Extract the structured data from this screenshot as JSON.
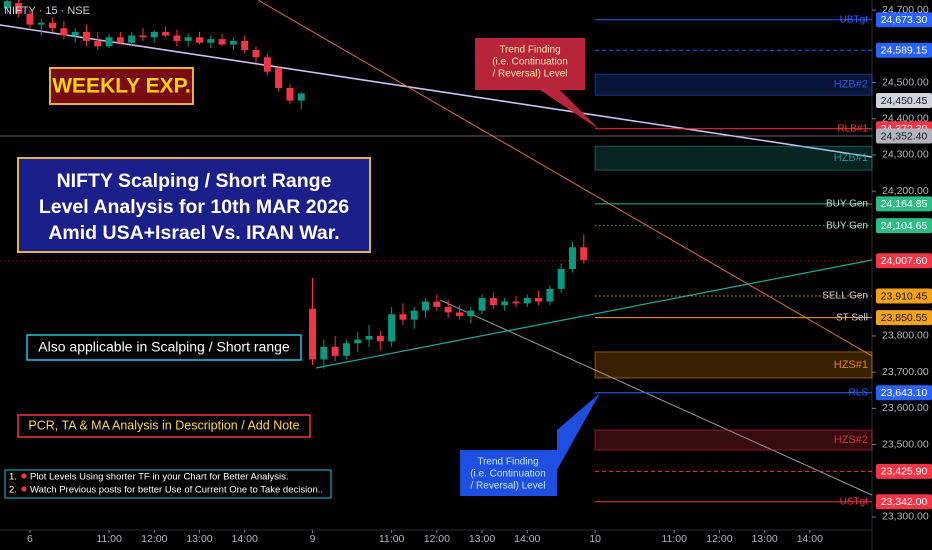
{
  "chart_data": {
    "type": "candlestick",
    "header": "NIFTY · 15 · NSE",
    "title_lines": [
      "NIFTY Scalping / Short Range",
      "Level Analysis for 10th MAR 2026",
      "Amid USA+Israel Vs. IRAN War."
    ],
    "badge": "WEEKLY EXP.",
    "note_scalping": "Also applicable in Scalping / Short range",
    "note_pcr": "PCR, TA & MA Analysis in Description / Add Note",
    "notes": [
      {
        "num": "1.",
        "text": "Plot Levels Using shorter TF in your Chart for Better Analysis."
      },
      {
        "num": "2.",
        "text": "Watch Previous posts for better Use of Current One to Take decision.."
      }
    ],
    "callouts": [
      {
        "lines": [
          "Trend Finding",
          "(i.e. Continuation",
          "/ Reversal) Level"
        ],
        "color": "#b8243a",
        "text_color": "#ffe7a8"
      },
      {
        "lines": [
          "Trend Finding",
          "(i.e. Continuation",
          "/ Reversal) Level"
        ],
        "color": "#1f4fe0",
        "text_color": "#bfe6ff"
      }
    ],
    "up_color": "#089981",
    "down_color": "#f23645",
    "x": [
      -2,
      -1,
      0,
      1,
      2,
      3,
      4,
      5,
      6,
      7,
      8,
      9,
      10,
      11,
      12,
      13,
      14,
      15,
      16,
      17,
      18,
      19,
      20,
      21,
      22,
      23,
      24,
      25,
      26,
      27,
      28,
      29,
      30,
      31,
      32,
      33,
      34,
      35,
      36,
      37,
      38,
      39,
      40,
      41,
      42,
      43,
      44,
      45,
      46,
      47,
      48,
      49
    ],
    "open": [
      24705,
      24720,
      24690,
      24660,
      24665,
      24650,
      24630,
      24640,
      24615,
      24600,
      24625,
      24610,
      24630,
      24625,
      24640,
      24630,
      24615,
      24625,
      24610,
      24620,
      24605,
      24615,
      24590,
      24570,
      24540,
      24485,
      24450,
      23875,
      23735,
      23770,
      23745,
      23780,
      23790,
      23800,
      23785,
      23860,
      23845,
      23870,
      23895,
      23880,
      23865,
      23855,
      23870,
      23905,
      23885,
      23895,
      23890,
      23905,
      23895,
      23930,
      23985,
      24045
    ],
    "high": [
      24730,
      24728,
      24700,
      24675,
      24680,
      24670,
      24650,
      24660,
      24640,
      24635,
      24640,
      24640,
      24650,
      24645,
      24655,
      24645,
      24635,
      24640,
      24630,
      24635,
      24625,
      24630,
      24600,
      24580,
      24545,
      24495,
      24475,
      23960,
      23790,
      23800,
      23790,
      23810,
      23830,
      23815,
      23880,
      23890,
      23880,
      23905,
      23915,
      23900,
      23885,
      23880,
      23915,
      23920,
      23905,
      23910,
      23915,
      23925,
      23940,
      24000,
      24060,
      24080
    ],
    "low": [
      24690,
      24680,
      24650,
      24630,
      24640,
      24620,
      24610,
      24600,
      24590,
      24595,
      24605,
      24600,
      24615,
      24610,
      24625,
      24600,
      24600,
      24605,
      24595,
      24600,
      24590,
      24580,
      24555,
      24520,
      24475,
      24440,
      24425,
      23720,
      23710,
      23730,
      23735,
      23755,
      23770,
      23760,
      23770,
      23830,
      23820,
      23850,
      23870,
      23850,
      23845,
      23835,
      23860,
      23875,
      23870,
      23880,
      23880,
      23885,
      23885,
      23920,
      23975,
      24000
    ],
    "close": [
      24725,
      24690,
      24660,
      24665,
      24650,
      24630,
      24640,
      24615,
      24600,
      24625,
      24610,
      24630,
      24625,
      24640,
      24630,
      24615,
      24625,
      24610,
      24620,
      24605,
      24615,
      24590,
      24570,
      24530,
      24485,
      24450,
      24470,
      23735,
      23770,
      23745,
      23780,
      23790,
      23800,
      23785,
      23860,
      23845,
      23870,
      23895,
      23880,
      23865,
      23855,
      23870,
      23905,
      23885,
      23895,
      23890,
      23905,
      23895,
      23930,
      23985,
      24045,
      24010
    ],
    "xlim": [
      -2.65,
      74.5
    ],
    "xticks": [
      {
        "value": 0,
        "label": "6"
      },
      {
        "value": 7,
        "label": "11:00"
      },
      {
        "value": 11,
        "label": "12:00"
      },
      {
        "value": 15,
        "label": "13:00"
      },
      {
        "value": 19,
        "label": "14:00"
      },
      {
        "value": 25,
        "label": "9"
      },
      {
        "value": 32,
        "label": "11:00"
      },
      {
        "value": 36,
        "label": "12:00"
      },
      {
        "value": 40,
        "label": "13:00"
      },
      {
        "value": 44,
        "label": "14:00"
      },
      {
        "value": 50,
        "label": "10"
      },
      {
        "value": 57,
        "label": "11:00"
      },
      {
        "value": 61,
        "label": "12:00"
      },
      {
        "value": 65,
        "label": "13:00"
      },
      {
        "value": 69,
        "label": "14:00"
      }
    ],
    "ylim": [
      23264,
      24728
    ],
    "yticks": [
      {
        "value": 24700,
        "label": "24,700.00"
      },
      {
        "value": 24500,
        "label": "24,500.00"
      },
      {
        "value": 24400,
        "label": "24,400.00"
      },
      {
        "value": 24300,
        "label": "24,300.00"
      },
      {
        "value": 24200,
        "label": "24,200.00"
      },
      {
        "value": 23800,
        "label": "23,800.00"
      },
      {
        "value": 23700,
        "label": "23,700.00"
      },
      {
        "value": 23600,
        "label": "23,600.00"
      },
      {
        "value": 23500,
        "label": "23,500.00"
      },
      {
        "value": 23300,
        "label": "23,300.00"
      }
    ],
    "zones": [
      {
        "name": "HZB#2",
        "range": [
          24465,
          24523
        ],
        "color": "#2962ff"
      },
      {
        "name": "HZB#1",
        "range": [
          24258,
          24324
        ],
        "color": "#26a69a"
      },
      {
        "name": "HZS#1",
        "range": [
          23684,
          23756
        ],
        "color": "#ff9800"
      },
      {
        "name": "HZS#2",
        "range": [
          23485,
          23540
        ],
        "color": "#f23645"
      }
    ],
    "levels": [
      {
        "name": "UBTgt",
        "value": 24673.3,
        "label": "24,673.30",
        "color": "#2962ff",
        "style": "solid",
        "extend": "right"
      },
      {
        "value": 24589.15,
        "label": "24,589.15",
        "color": "#2962ff",
        "style": "dashed",
        "extend": "right"
      },
      {
        "value": 24450.45,
        "label": "24,450.45",
        "color": "#d1d4dc",
        "style": "none",
        "extend": "right"
      },
      {
        "name": "RLB#1",
        "value": 24372.3,
        "label": "24,372.30",
        "color": "#f23645",
        "style": "solid",
        "extend": "right"
      },
      {
        "value": 24352.4,
        "label": "24,352.40",
        "color": "#b2b5be",
        "style": "solid",
        "extend": "full"
      },
      {
        "name": "BUY Gen",
        "value": 24164.85,
        "label": "24,164.85",
        "color": "#2ebd85",
        "style": "solid",
        "extend": "right"
      },
      {
        "name": "BUY Gen",
        "value": 24104.65,
        "label": "24,104.65",
        "color": "#2ebd85",
        "style": "dotted",
        "extend": "right"
      },
      {
        "value": 24007.6,
        "label": "24,007.60",
        "color": "#f23645",
        "style": "dotted",
        "extend": "full"
      },
      {
        "name": "SELL Gen",
        "value": 23910.45,
        "label": "23,910.45",
        "color": "#f7a21b",
        "style": "dotted",
        "extend": "right"
      },
      {
        "name": "ST Sell",
        "value": 23850.55,
        "label": "23,850.55",
        "color": "#f7a21b",
        "style": "solid",
        "extend": "right"
      },
      {
        "name": "RLS",
        "value": 23643.1,
        "label": "23,643.10",
        "color": "#2962ff",
        "style": "solid",
        "extend": "right"
      },
      {
        "value": 23425.9,
        "label": "23,425.90",
        "color": "#f23645",
        "style": "dashed",
        "extend": "right"
      },
      {
        "name": "USTgt",
        "value": 23342,
        "label": "23,342.00",
        "color": "#f23645",
        "style": "solid",
        "extend": "right"
      }
    ]
  }
}
